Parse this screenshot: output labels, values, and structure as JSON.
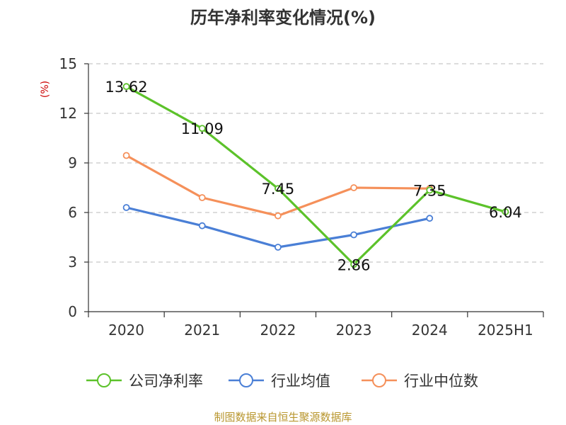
{
  "source_note": "制图数据来自恒生聚源数据库",
  "chart_data": {
    "type": "line",
    "title": "历年净利率变化情况(%)",
    "ylabel": "(%)",
    "xlabel": "",
    "categories": [
      "2020",
      "2021",
      "2022",
      "2023",
      "2024",
      "2025H1"
    ],
    "ylim": [
      0,
      15
    ],
    "yticks": [
      0,
      3,
      6,
      9,
      12,
      15
    ],
    "grid": true,
    "legend_position": "bottom",
    "series": [
      {
        "name": "公司净利率",
        "color": "#5cc22a",
        "values": [
          13.62,
          11.09,
          7.45,
          2.86,
          7.35,
          6.04
        ],
        "labels": [
          "13.62",
          "11.09",
          "7.45",
          "2.86",
          "7.35",
          "6.04"
        ]
      },
      {
        "name": "行业均值",
        "color": "#4a7fd6",
        "values": [
          6.3,
          5.2,
          3.9,
          4.65,
          5.65,
          null
        ]
      },
      {
        "name": "行业中位数",
        "color": "#f5905a",
        "values": [
          9.45,
          6.9,
          5.8,
          7.5,
          7.45,
          null
        ]
      }
    ]
  }
}
